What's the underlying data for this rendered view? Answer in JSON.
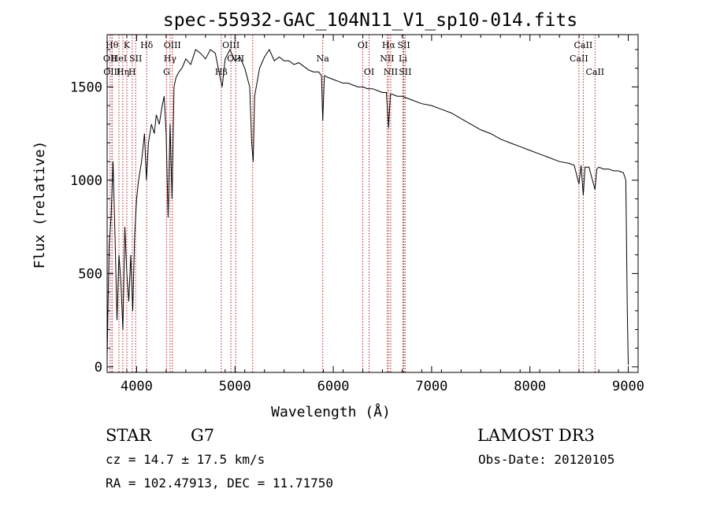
{
  "chart_data": {
    "type": "line",
    "title": "spec-55932-GAC_104N11_V1_sp10-014.fits",
    "xlabel": "Wavelength (Å)",
    "ylabel": "Flux (relative)",
    "xlim": [
      3700,
      9100
    ],
    "ylim": [
      -30,
      1780
    ],
    "xticks": [
      4000,
      5000,
      6000,
      7000,
      8000,
      9000
    ],
    "yticks": [
      0,
      500,
      1000,
      1500
    ],
    "grid": false,
    "series": [
      {
        "name": "flux",
        "x": [
          3700,
          3720,
          3740,
          3760,
          3780,
          3800,
          3820,
          3840,
          3860,
          3880,
          3900,
          3920,
          3940,
          3960,
          3980,
          4000,
          4020,
          4050,
          4080,
          4100,
          4120,
          4150,
          4180,
          4200,
          4230,
          4260,
          4280,
          4300,
          4320,
          4340,
          4360,
          4380,
          4400,
          4430,
          4460,
          4500,
          4550,
          4600,
          4650,
          4700,
          4750,
          4800,
          4850,
          4870,
          4900,
          4950,
          5000,
          5050,
          5100,
          5150,
          5170,
          5185,
          5200,
          5250,
          5300,
          5350,
          5400,
          5450,
          5500,
          5550,
          5600,
          5650,
          5700,
          5750,
          5800,
          5850,
          5880,
          5893,
          5910,
          5950,
          6000,
          6050,
          6100,
          6150,
          6200,
          6250,
          6300,
          6350,
          6400,
          6450,
          6500,
          6540,
          6563,
          6580,
          6600,
          6650,
          6700,
          6750,
          6800,
          6900,
          7000,
          7100,
          7200,
          7300,
          7400,
          7500,
          7600,
          7700,
          7800,
          7900,
          8000,
          8100,
          8200,
          8300,
          8400,
          8450,
          8498,
          8520,
          8542,
          8560,
          8600,
          8662,
          8680,
          8700,
          8750,
          8800,
          8850,
          8900,
          8950,
          8975,
          8990,
          9000
        ],
        "y": [
          50,
          650,
          800,
          1100,
          700,
          250,
          600,
          450,
          200,
          750,
          500,
          350,
          600,
          300,
          700,
          900,
          1000,
          1100,
          1250,
          1000,
          1200,
          1300,
          1250,
          1350,
          1300,
          1400,
          1450,
          1250,
          800,
          1300,
          900,
          1500,
          1550,
          1580,
          1600,
          1650,
          1620,
          1700,
          1680,
          1650,
          1700,
          1680,
          1550,
          1500,
          1650,
          1700,
          1640,
          1660,
          1600,
          1500,
          1200,
          1100,
          1450,
          1600,
          1660,
          1700,
          1640,
          1660,
          1640,
          1640,
          1620,
          1630,
          1610,
          1590,
          1580,
          1580,
          1560,
          1320,
          1560,
          1550,
          1540,
          1530,
          1520,
          1520,
          1510,
          1500,
          1500,
          1490,
          1490,
          1480,
          1470,
          1470,
          1280,
          1460,
          1460,
          1450,
          1450,
          1440,
          1430,
          1410,
          1400,
          1380,
          1360,
          1330,
          1300,
          1270,
          1250,
          1220,
          1200,
          1180,
          1160,
          1140,
          1120,
          1100,
          1090,
          1080,
          980,
          1080,
          920,
          1070,
          1070,
          950,
          1060,
          1070,
          1060,
          1060,
          1050,
          1050,
          1040,
          1000,
          300,
          10
        ]
      }
    ],
    "line_markers": [
      {
        "x": 3750,
        "label": "Hθ",
        "row": 1
      },
      {
        "x": 3730,
        "label": "OII",
        "row": 2
      },
      {
        "x": 3750,
        "label": "OIII",
        "row": 3
      },
      {
        "x": 3820,
        "label": "HeI",
        "row": 2
      },
      {
        "x": 3860,
        "label": "Hη",
        "row": 3
      },
      {
        "x": 3900,
        "label": "K",
        "row": 1
      },
      {
        "x": 3955,
        "label": "H",
        "row": 3
      },
      {
        "x": 3990,
        "label": "SII",
        "row": 2
      },
      {
        "x": 4102,
        "label": "Hδ",
        "row": 1
      },
      {
        "x": 4340,
        "label": "Hγ",
        "row": 2
      },
      {
        "x": 4363,
        "label": "OIII",
        "row": 1
      },
      {
        "x": 4304,
        "label": "G",
        "row": 3
      },
      {
        "x": 4861,
        "label": "Hβ",
        "row": 3
      },
      {
        "x": 4959,
        "label": "OIII",
        "row": 1
      },
      {
        "x": 5007,
        "label": "OIII",
        "row": 2
      },
      {
        "x": 5180,
        "label": "",
        "row": 0
      },
      {
        "x": 5893,
        "label": "Na",
        "row": 2
      },
      {
        "x": 6300,
        "label": "OI",
        "row": 1
      },
      {
        "x": 6364,
        "label": "OI",
        "row": 3
      },
      {
        "x": 6548,
        "label": "NII",
        "row": 2
      },
      {
        "x": 6563,
        "label": "Hα",
        "row": 1
      },
      {
        "x": 6584,
        "label": "NII",
        "row": 3
      },
      {
        "x": 6708,
        "label": "Li",
        "row": 2
      },
      {
        "x": 6717,
        "label": "SII",
        "row": 1
      },
      {
        "x": 6731,
        "label": "SII",
        "row": 3
      },
      {
        "x": 8498,
        "label": "CaII",
        "row": 2
      },
      {
        "x": 8542,
        "label": "CaII",
        "row": 1
      },
      {
        "x": 8662,
        "label": "CaII",
        "row": 3
      }
    ]
  },
  "info": {
    "class": "STAR",
    "subclass": "G7",
    "survey": "LAMOST DR3",
    "cz": "cz = 14.7 ± 17.5 km/s",
    "obs_date": "Obs-Date: 20120105",
    "coords": "RA = 102.47913, DEC =  11.71750"
  }
}
